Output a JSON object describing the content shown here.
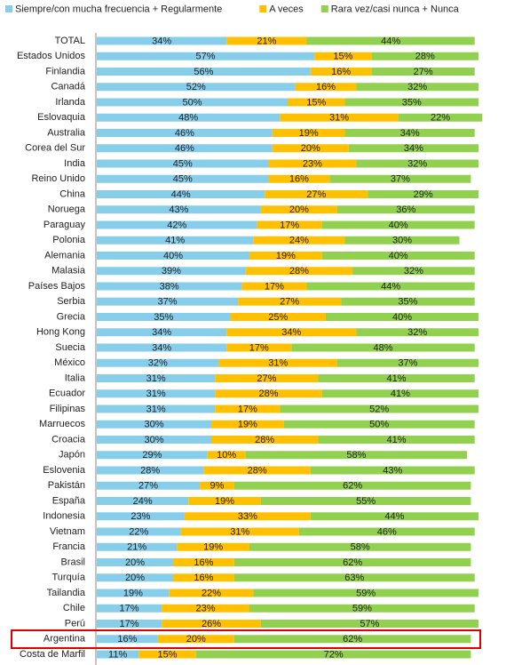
{
  "chart_data": {
    "type": "stacked-bar-horizontal",
    "categories": [
      "TOTAL",
      "Estados Unidos",
      "Finlandia",
      "Canadá",
      "Irlanda",
      "Eslovaquia",
      "Australia",
      "Corea del Sur",
      "India",
      "Reino Unido",
      "China",
      "Noruega",
      "Paraguay",
      "Polonia",
      "Alemania",
      "Malasia",
      "Países Bajos",
      "Serbia",
      "Grecia",
      "Hong Kong",
      "Suecia",
      "México",
      "Italia",
      "Ecuador",
      "Filipinas",
      "Marruecos",
      "Croacia",
      "Japón",
      "Eslovenia",
      "Pakistán",
      "España",
      "Indonesia",
      "Vietnam",
      "Francia",
      "Brasil",
      "Turquía",
      "Tailandia",
      "Chile",
      "Perú",
      "Argentina",
      "Costa de Marfil"
    ],
    "series": [
      {
        "name": "Siempre/con mucha frecuencia + Regularmente",
        "color": "#87CEEB",
        "values": [
          34,
          57,
          56,
          52,
          50,
          48,
          46,
          46,
          45,
          45,
          44,
          43,
          42,
          41,
          40,
          39,
          38,
          37,
          35,
          34,
          34,
          32,
          31,
          31,
          31,
          30,
          30,
          29,
          28,
          27,
          24,
          23,
          22,
          21,
          20,
          20,
          19,
          17,
          17,
          16,
          11
        ],
        "value_labels": [
          "34%",
          "57%",
          "56%",
          "52%",
          "50%",
          "48%",
          "46%",
          "46%",
          "45%",
          "45%",
          "44%",
          "43%",
          "42%",
          "41%",
          "40%",
          "39%",
          "38%",
          "37%",
          "35%",
          "34%",
          "34%",
          "32%",
          "31%",
          "31%",
          "31%",
          "30%",
          "30%",
          "29%",
          "28%",
          "27%",
          "24%",
          "23%",
          "22%",
          "21%",
          "20%",
          "20%",
          "19%",
          "17%",
          "17%",
          "16%",
          "11%"
        ]
      },
      {
        "name": "A veces",
        "color": "#FFC000",
        "values": [
          21,
          15,
          16,
          16,
          15,
          31,
          19,
          20,
          23,
          16,
          27,
          20,
          17,
          24,
          19,
          28,
          17,
          27,
          25,
          34,
          17,
          31,
          27,
          28,
          17,
          19,
          28,
          10,
          28,
          9,
          19,
          33,
          31,
          19,
          16,
          16,
          22,
          23,
          26,
          20,
          15
        ],
        "value_labels": [
          "21%",
          "15%",
          "16%",
          "16%",
          "15%",
          "31%",
          "19%",
          "20%",
          "23%",
          "16%",
          "27%",
          "20%",
          "17%",
          "24%",
          "19%",
          "28%",
          "17%",
          "27%",
          "25%",
          "34%",
          "17%",
          "31%",
          "27%",
          "28%",
          "17%",
          "19%",
          "28%",
          "10%",
          "28%",
          "9%",
          "19%",
          "33%",
          "31%",
          "19%",
          "16%",
          "16%",
          "22%",
          "23%",
          "26%",
          "20%",
          "15%"
        ]
      },
      {
        "name": "Rara vez/casi nunca + Nunca",
        "color": "#92D050",
        "values": [
          44,
          28,
          27,
          32,
          35,
          22,
          34,
          34,
          32,
          37,
          29,
          36,
          40,
          30,
          40,
          32,
          44,
          35,
          40,
          32,
          48,
          37,
          41,
          41,
          52,
          50,
          41,
          58,
          43,
          62,
          55,
          44,
          46,
          58,
          62,
          63,
          59,
          59,
          57,
          62,
          72
        ],
        "value_labels": [
          "44%",
          "28%",
          "27%",
          "32%",
          "35%",
          "22%",
          "34%",
          "34%",
          "32%",
          "37%",
          "29%",
          "36%",
          "40%",
          "30%",
          "40%",
          "32%",
          "44%",
          "35%",
          "40%",
          "32%",
          "48%",
          "37%",
          "41%",
          "41%",
          "52%",
          "50%",
          "41%",
          "58%",
          "43%",
          "62%",
          "55%",
          "44%",
          "46%",
          "58%",
          "62%",
          "63%",
          "59%",
          "59%",
          "57%",
          "62%",
          "72%"
        ]
      }
    ]
  }
}
